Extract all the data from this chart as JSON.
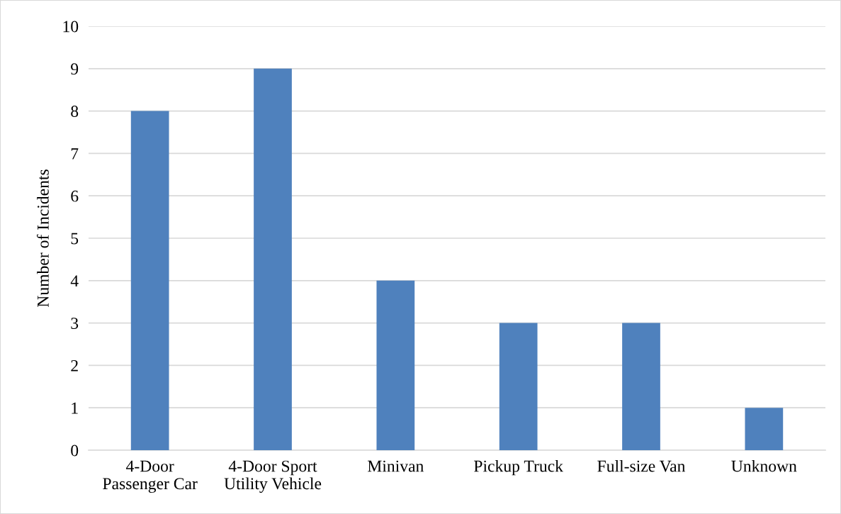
{
  "chart_data": {
    "type": "bar",
    "ylabel": "Number of Incidents",
    "categories": [
      "4-Door\nPassenger Car",
      "4-Door Sport\nUtility Vehicle",
      "Minivan",
      "Pickup Truck",
      "Full-size Van",
      "Unknown"
    ],
    "values": [
      8,
      9,
      4,
      3,
      3,
      1
    ],
    "color": "#4f81bd",
    "ylim": [
      0,
      10
    ],
    "yticks": [
      0,
      1,
      2,
      3,
      4,
      5,
      6,
      7,
      8,
      9,
      10
    ],
    "grid": "y",
    "legend": false
  }
}
